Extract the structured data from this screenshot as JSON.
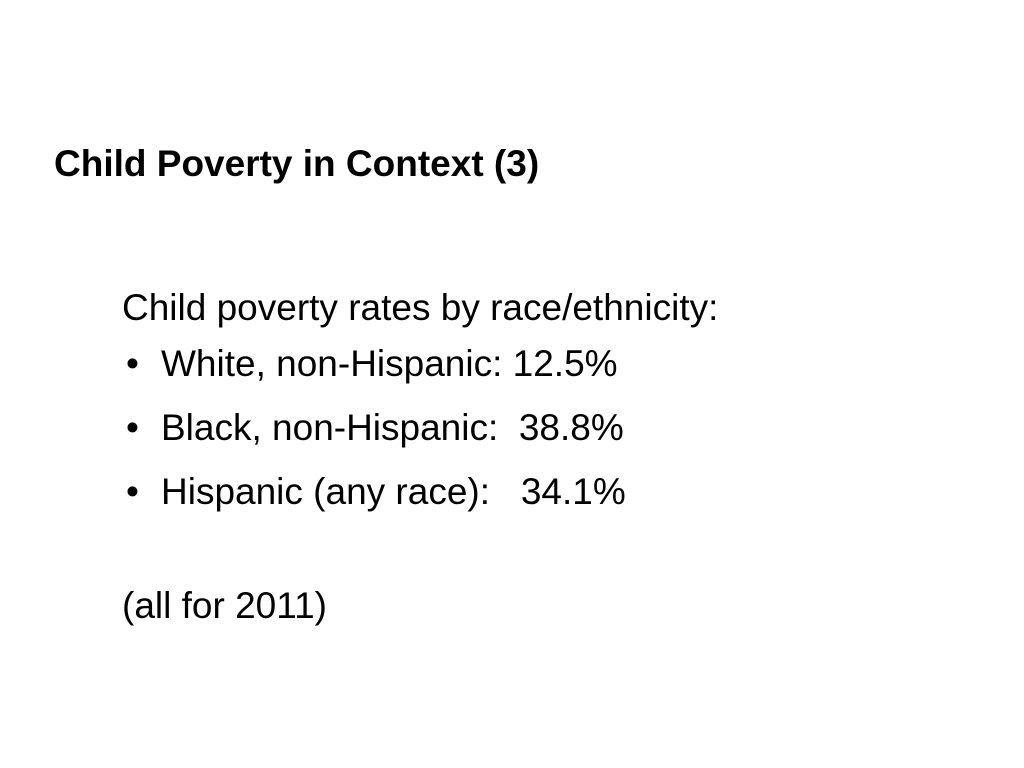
{
  "slide": {
    "title": "Child Poverty in Context (3)",
    "intro": "Child poverty rates by race/ethnicity:",
    "bullets": [
      {
        "text": "White, non-Hispanic: 12.5%"
      },
      {
        "text": "Black, non-Hispanic:  38.8%"
      },
      {
        "text": "Hispanic (any race):   34.1%"
      }
    ],
    "bullet_glyph": "•",
    "note": "(all for 2011)"
  }
}
